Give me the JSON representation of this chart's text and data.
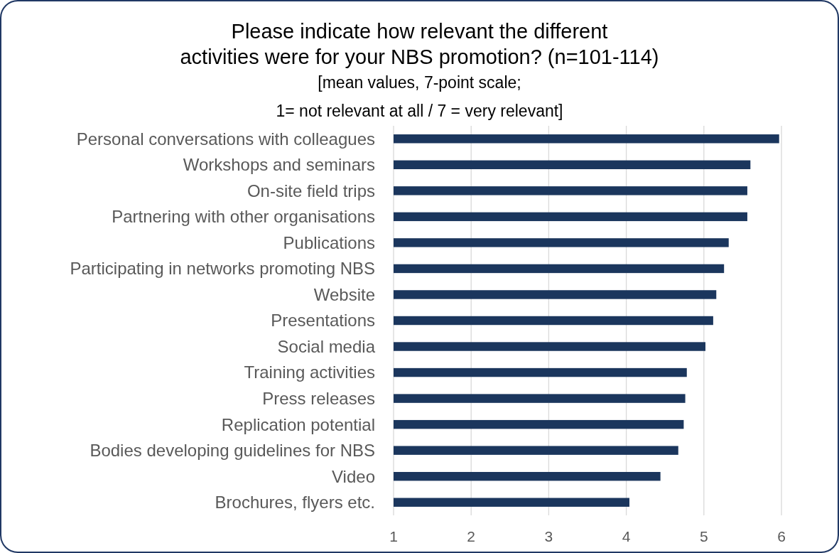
{
  "chart_data": {
    "type": "bar",
    "orientation": "horizontal",
    "title": "Please indicate how relevant the different\nactivities were for your NBS promotion? (n=101-114)",
    "subtitle": "[mean values, 7-point scale;\n1= not relevant at all / 7 = very relevant]",
    "categories": [
      "Personal conversations with colleagues",
      "Workshops and seminars",
      "On-site field trips",
      "Partnering with other organisations",
      "Publications",
      "Participating in networks promoting NBS",
      "Website",
      "Presentations",
      "Social media",
      "Training activities",
      "Press releases",
      "Replication potential",
      "Bodies developing guidelines for NBS",
      "Video",
      "Brochures, flyers etc."
    ],
    "values": [
      5.97,
      5.6,
      5.56,
      5.56,
      5.32,
      5.26,
      5.16,
      5.12,
      5.02,
      4.78,
      4.76,
      4.74,
      4.67,
      4.44,
      4.04
    ],
    "color": "#1b365d",
    "xlim": [
      1,
      6
    ],
    "xticks": [
      1,
      2,
      3,
      4,
      5,
      6
    ],
    "grid": "x"
  }
}
